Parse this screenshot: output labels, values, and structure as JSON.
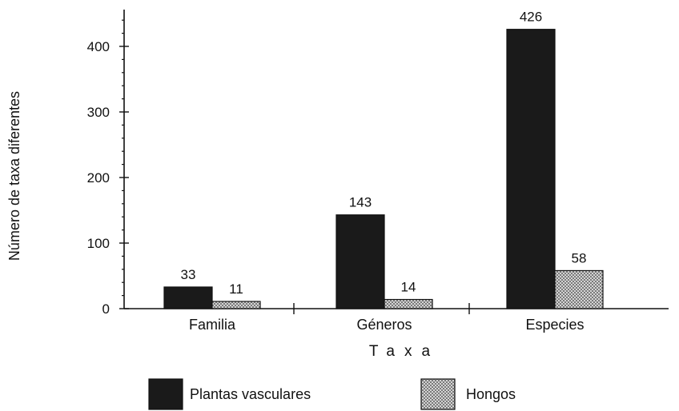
{
  "chart_data": {
    "type": "bar",
    "categories": [
      "Familia",
      "Géneros",
      "Especies"
    ],
    "series": [
      {
        "name": "Plantas vasculares",
        "values": [
          33,
          143,
          426
        ],
        "fill": "solid",
        "color": "#1a1a1a"
      },
      {
        "name": "Hongos",
        "values": [
          11,
          14,
          58
        ],
        "fill": "crosshatch",
        "color": "#bdbdbd"
      }
    ],
    "value_labels": [
      [
        "33",
        "143",
        "426"
      ],
      [
        "11",
        "14",
        "58"
      ]
    ],
    "ylabel": "Número de taxa diferentes",
    "xlabel": "Taxa",
    "ylim": [
      0,
      450
    ],
    "yticks": [
      0,
      100,
      200,
      300,
      400
    ],
    "grid": false,
    "legend": "bottom"
  }
}
